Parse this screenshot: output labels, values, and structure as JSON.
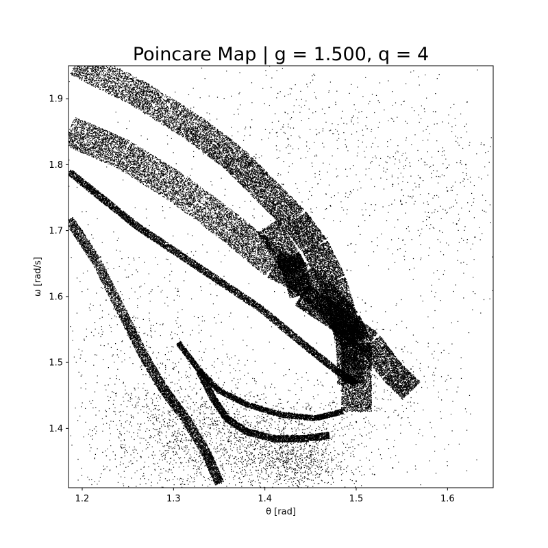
{
  "chart_data": {
    "type": "scatter",
    "title": "Poincare Map | g = 1.500, q = 4",
    "xlabel": "θ [rad]",
    "ylabel": "ω [rad/s]",
    "xlim": [
      1.185,
      1.65
    ],
    "ylim": [
      1.31,
      1.95
    ],
    "xticks": [
      1.2,
      1.3,
      1.4,
      1.5,
      1.6
    ],
    "xtick_labels": [
      "1.2",
      "1.3",
      "1.4",
      "1.5",
      "1.6"
    ],
    "yticks": [
      1.4,
      1.5,
      1.6,
      1.7,
      1.8,
      1.9
    ],
    "ytick_labels": [
      "1.4",
      "1.5",
      "1.6",
      "1.7",
      "1.8",
      "1.9"
    ],
    "grid": false,
    "marker_color": "#000000",
    "marker_size": 1,
    "series": [
      {
        "values": [
          [
            1.185,
            1.85
          ],
          [
            1.2,
            1.84
          ],
          [
            1.23,
            1.82
          ],
          [
            1.26,
            1.79
          ],
          [
            1.29,
            1.77
          ],
          [
            1.32,
            1.74
          ],
          [
            1.35,
            1.71
          ],
          [
            1.38,
            1.68
          ],
          [
            1.41,
            1.64
          ],
          [
            1.44,
            1.6
          ],
          [
            1.46,
            1.57
          ],
          [
            1.48,
            1.54
          ],
          [
            1.5,
            1.51
          ],
          [
            1.52,
            1.48
          ],
          [
            1.2,
            1.95
          ],
          [
            1.24,
            1.93
          ],
          [
            1.28,
            1.9
          ],
          [
            1.32,
            1.87
          ],
          [
            1.36,
            1.84
          ],
          [
            1.39,
            1.81
          ],
          [
            1.42,
            1.77
          ],
          [
            1.45,
            1.72
          ],
          [
            1.47,
            1.68
          ],
          [
            1.49,
            1.64
          ],
          [
            1.51,
            1.59
          ],
          [
            1.53,
            1.55
          ],
          [
            1.55,
            1.52
          ],
          [
            1.56,
            1.49
          ],
          [
            1.43,
            1.64
          ],
          [
            1.44,
            1.63
          ],
          [
            1.46,
            1.65
          ],
          [
            1.48,
            1.62
          ],
          [
            1.2,
            1.7
          ],
          [
            1.22,
            1.66
          ],
          [
            1.24,
            1.6
          ],
          [
            1.26,
            1.54
          ],
          [
            1.28,
            1.48
          ],
          [
            1.3,
            1.44
          ],
          [
            1.32,
            1.42
          ],
          [
            1.34,
            1.4
          ],
          [
            1.36,
            1.38
          ],
          [
            1.38,
            1.37
          ],
          [
            1.4,
            1.36
          ],
          [
            1.42,
            1.35
          ],
          [
            1.44,
            1.34
          ],
          [
            1.46,
            1.33
          ],
          [
            1.3,
            1.49
          ],
          [
            1.33,
            1.47
          ],
          [
            1.36,
            1.45
          ],
          [
            1.39,
            1.44
          ],
          [
            1.42,
            1.43
          ],
          [
            1.45,
            1.43
          ],
          [
            1.48,
            1.42
          ],
          [
            1.5,
            1.41
          ],
          [
            1.27,
            1.45
          ],
          [
            1.28,
            1.43
          ],
          [
            1.29,
            1.41
          ],
          [
            1.3,
            1.39
          ],
          [
            1.58,
            1.72
          ],
          [
            1.6,
            1.76
          ],
          [
            1.62,
            1.8
          ],
          [
            1.55,
            1.74
          ],
          [
            1.57,
            1.78
          ],
          [
            1.61,
            1.71
          ],
          [
            1.63,
            1.69
          ],
          [
            1.59,
            1.82
          ],
          [
            1.54,
            1.77
          ],
          [
            1.64,
            1.83
          ],
          [
            1.52,
            1.33
          ],
          [
            1.54,
            1.34
          ],
          [
            1.5,
            1.32
          ],
          [
            1.43,
            1.35
          ],
          [
            1.45,
            1.36
          ]
        ]
      }
    ]
  }
}
